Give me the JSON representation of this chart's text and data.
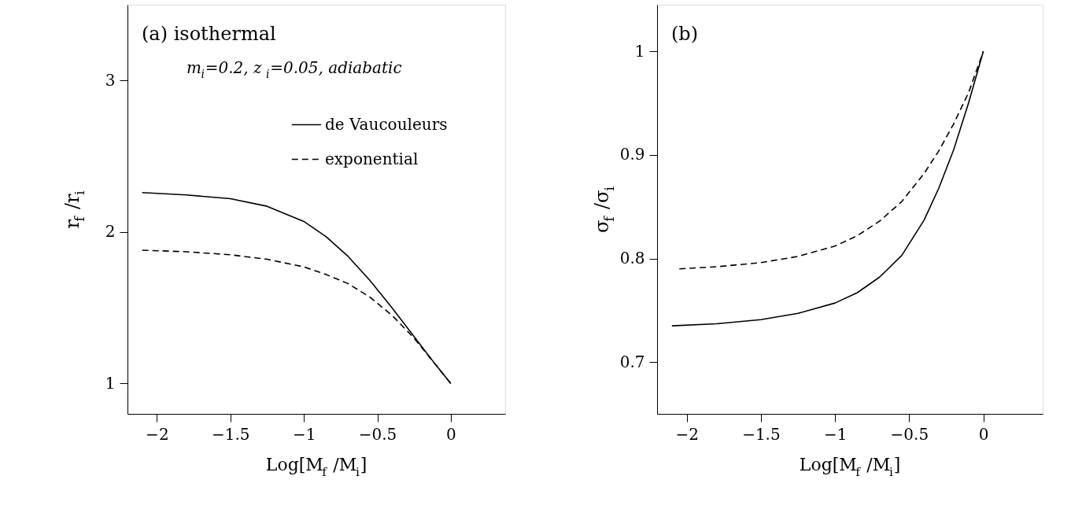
{
  "chart_data": [
    {
      "type": "line",
      "xlabel": "Log[M$_{f}$ /M$_{i}$]",
      "ylabel": "r$_{f}$ /r$_{i}$",
      "annotations": [
        "(a) isothermal",
        "m$_{i}$=0.2, z$_{i}$=0.05, adiabatic"
      ],
      "xlim": [
        -2.2,
        0.37
      ],
      "ylim": [
        0.8,
        3.5
      ],
      "xticks": [
        -2,
        -1.5,
        -1,
        -0.5,
        0
      ],
      "yticks": [
        1,
        2,
        3
      ],
      "grid": false,
      "legend": "top right",
      "marker": "none",
      "series": [
        {
          "name": "de Vaucouleurs",
          "color": "#000000",
          "line_style": "solid",
          "x": [
            -2.1,
            -1.8,
            -1.5,
            -1.25,
            -1.0,
            -0.85,
            -0.7,
            -0.55,
            -0.4,
            -0.25,
            -0.1,
            0
          ],
          "values": [
            2.26,
            2.245,
            2.22,
            2.17,
            2.07,
            1.97,
            1.84,
            1.68,
            1.5,
            1.31,
            1.12,
            1.0
          ]
        },
        {
          "name": "exponential",
          "color": "#000000",
          "line_style": "dashed",
          "x": [
            -2.1,
            -1.8,
            -1.5,
            -1.25,
            -1.0,
            -0.85,
            -0.7,
            -0.55,
            -0.4,
            -0.25,
            -0.1,
            0
          ],
          "values": [
            1.88,
            1.87,
            1.85,
            1.82,
            1.77,
            1.72,
            1.66,
            1.57,
            1.45,
            1.3,
            1.12,
            1.0
          ]
        }
      ]
    },
    {
      "type": "line",
      "xlabel": "Log[M$_{f}$ /M$_{i}$]",
      "ylabel": "σ$_{f}$ /σ$_{i}$",
      "annotations": [
        "(b)"
      ],
      "xlim": [
        -2.2,
        0.4
      ],
      "ylim": [
        0.65,
        1.045
      ],
      "xticks": [
        -2,
        -1.5,
        -1,
        -0.5,
        0
      ],
      "yticks": [
        0.7,
        0.8,
        0.9,
        1
      ],
      "grid": false,
      "marker": "none",
      "series": [
        {
          "color": "#000000",
          "line_style": "solid",
          "x": [
            -2.1,
            -1.8,
            -1.5,
            -1.25,
            -1.0,
            -0.85,
            -0.7,
            -0.55,
            -0.4,
            -0.3,
            -0.2,
            -0.1,
            0
          ],
          "values": [
            0.735,
            0.737,
            0.741,
            0.747,
            0.757,
            0.767,
            0.782,
            0.803,
            0.837,
            0.868,
            0.905,
            0.95,
            1.0
          ]
        },
        {
          "color": "#000000",
          "line_style": "dashed",
          "x": [
            -2.05,
            -1.8,
            -1.5,
            -1.25,
            -1.0,
            -0.85,
            -0.7,
            -0.55,
            -0.4,
            -0.3,
            -0.2,
            -0.1,
            0
          ],
          "values": [
            0.79,
            0.792,
            0.796,
            0.802,
            0.812,
            0.822,
            0.836,
            0.855,
            0.882,
            0.904,
            0.93,
            0.96,
            1.0
          ]
        }
      ]
    }
  ]
}
